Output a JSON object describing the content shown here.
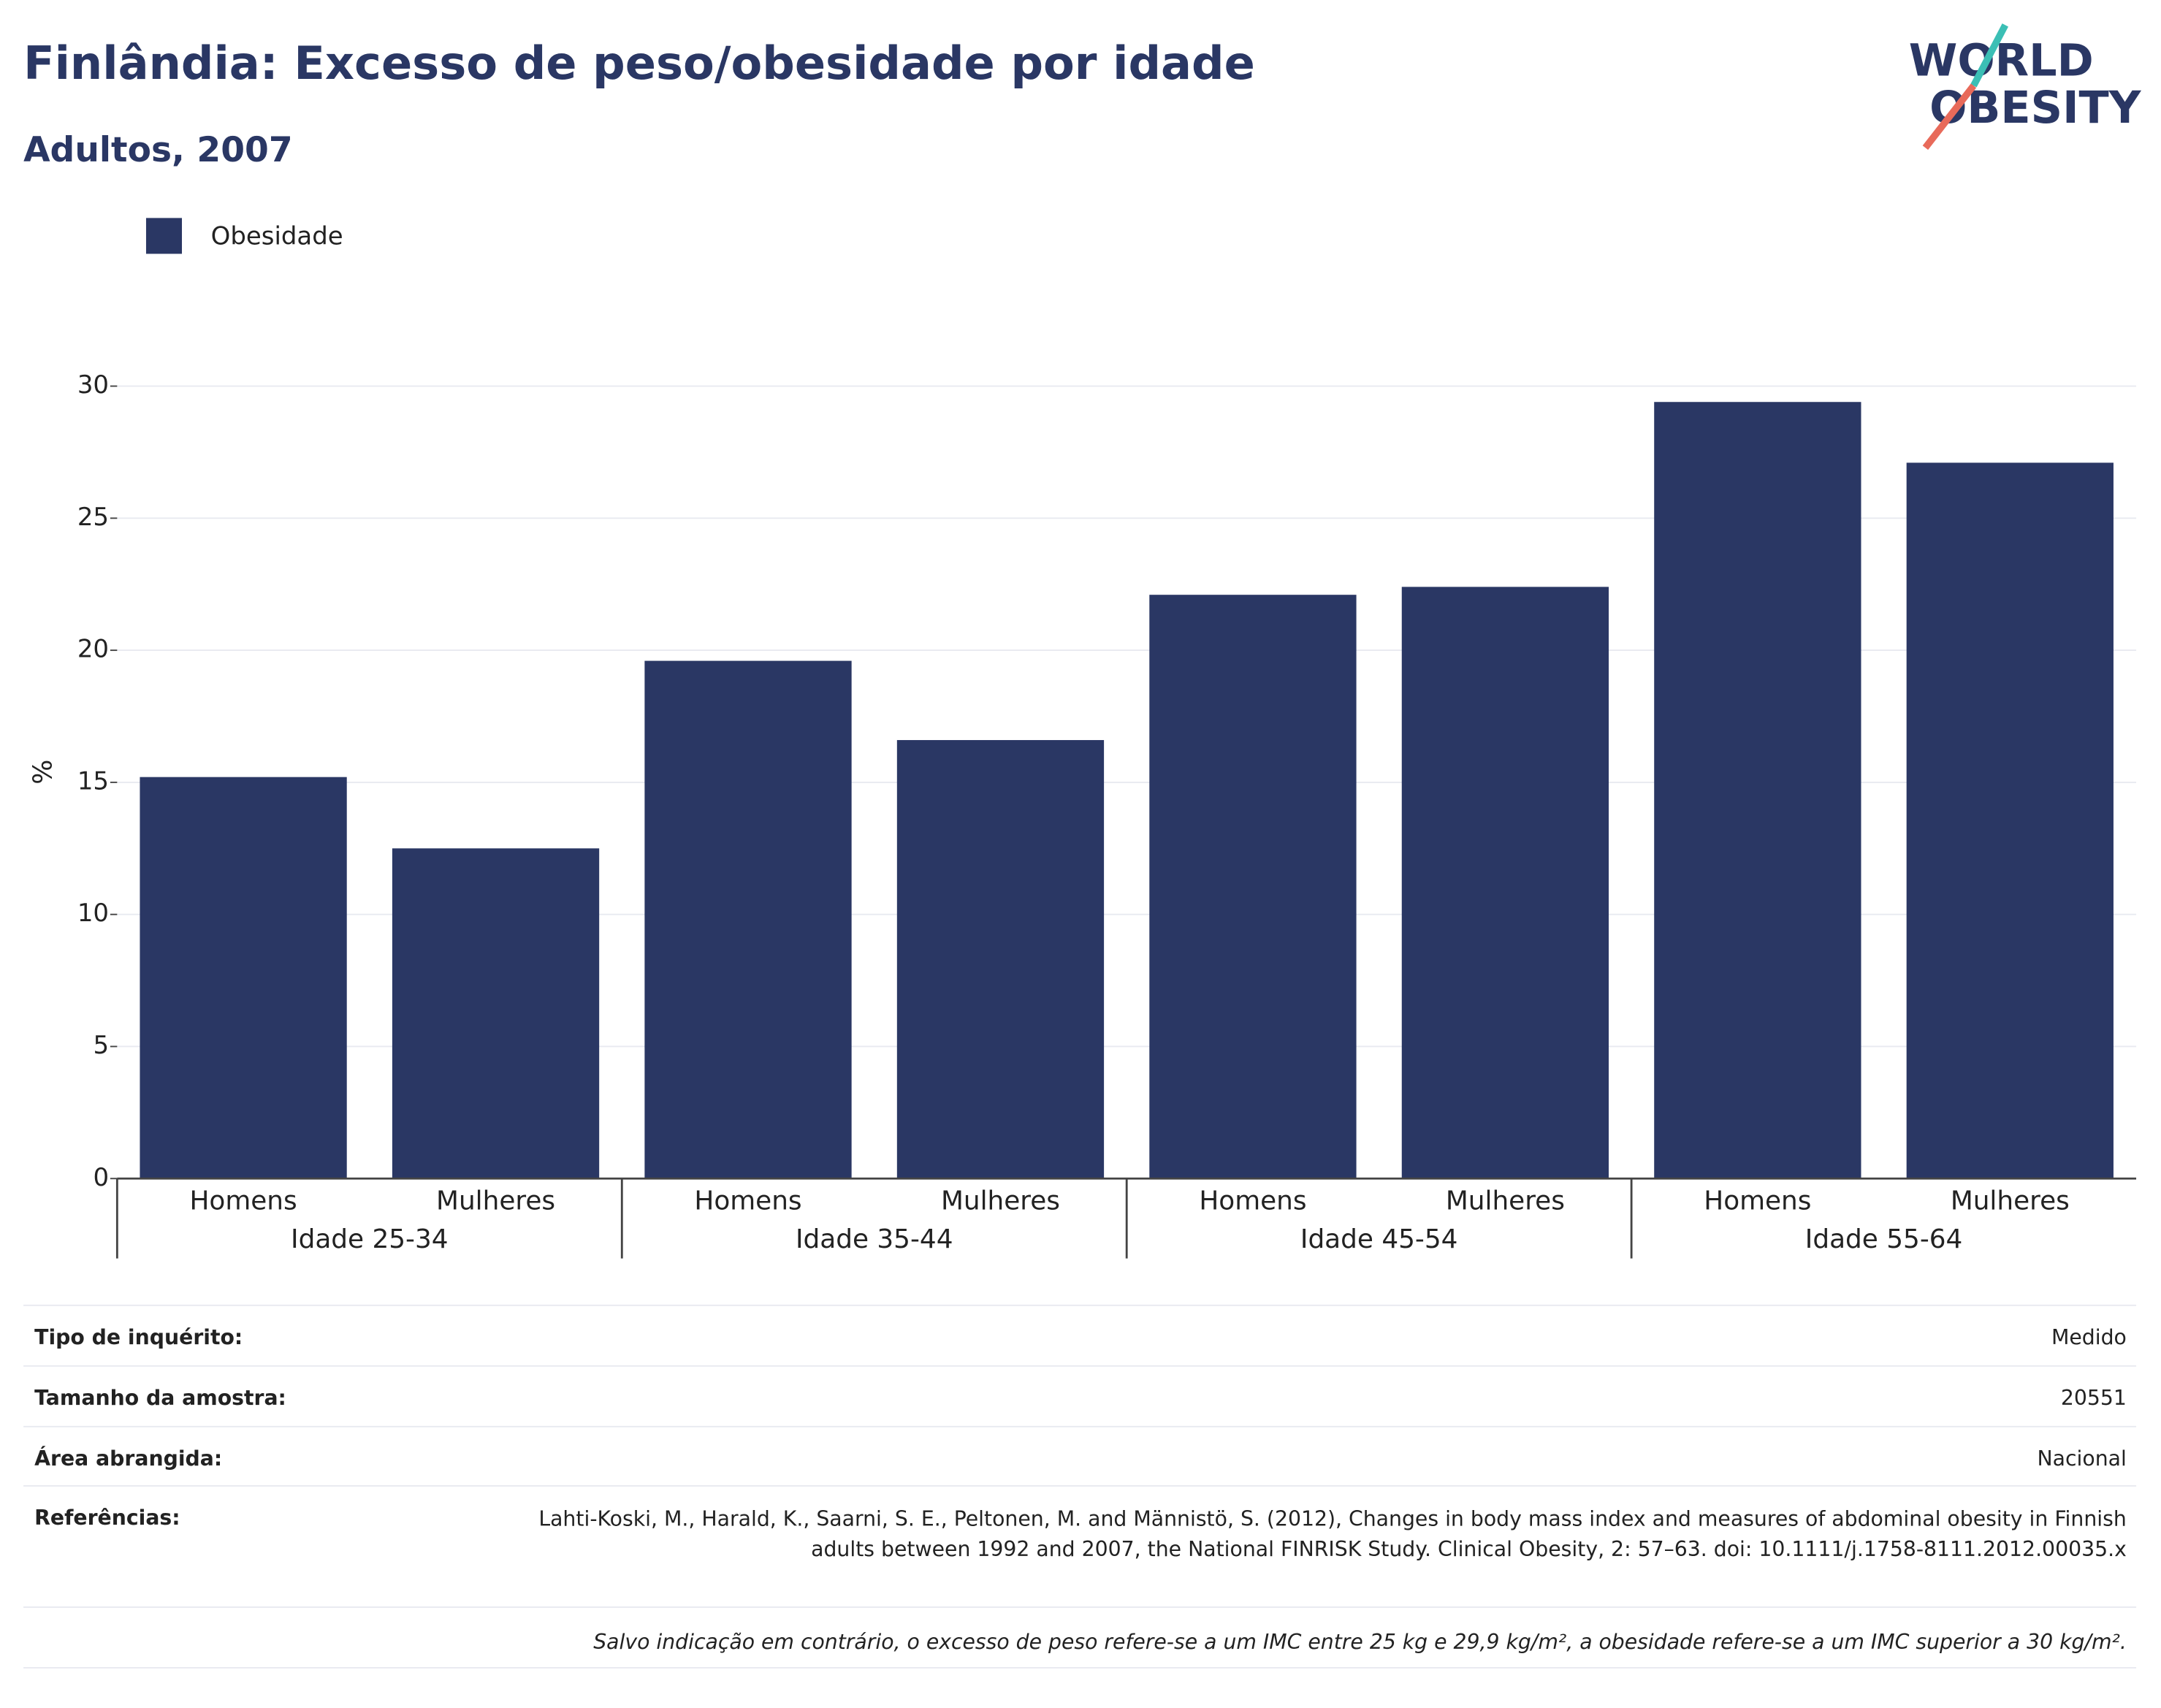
{
  "chart_data": {
    "type": "bar",
    "title": "Finlândia: Excesso de peso/obesidade por idade",
    "subtitle": "Adultos, 2007",
    "y_label": "%",
    "categories": [
      "Homens",
      "Mulheres",
      "Homens",
      "Mulheres",
      "Homens",
      "Mulheres",
      "Homens",
      "Mulheres"
    ],
    "groups": [
      "Idade 25-34",
      "Idade 35-44",
      "Idade 45-54",
      "Idade 55-64"
    ],
    "series": [
      {
        "name": "Obesidade",
        "color": "#2a3764",
        "values": [
          15.2,
          12.5,
          19.6,
          16.6,
          22.1,
          22.4,
          29.4,
          27.1
        ]
      }
    ],
    "ylim": [
      0,
      30
    ],
    "yticks": [
      0,
      5,
      10,
      15,
      20,
      25,
      30
    ],
    "grid": true,
    "legend": "top-left"
  },
  "logo": {
    "line1": "WORLD",
    "line2": "OBESITY"
  },
  "info": {
    "rows": [
      [
        "Tipo de inquérito:",
        "Medido"
      ],
      [
        "Tamanho da amostra:",
        "20551"
      ],
      [
        "Área abrangida:",
        "Nacional"
      ],
      [
        "Referências:",
        "Lahti-Koski, M., Harald, K., Saarni, S. E., Peltonen, M. and Männistö, S. (2012), Changes in body mass index and measures of abdominal obesity in Finnish adults between 1992 and 2007, the National FINRISK Study. Clinical Obesity, 2: 57–63. doi: 10.1111/j.1758-8111.2012.00035.x"
      ]
    ],
    "note": "Salvo indicação em contrário, o excesso de peso refere-se a um IMC entre 25 kg e 29,9 kg/m², a obesidade refere-se a um IMC superior a 30 kg/m²."
  }
}
